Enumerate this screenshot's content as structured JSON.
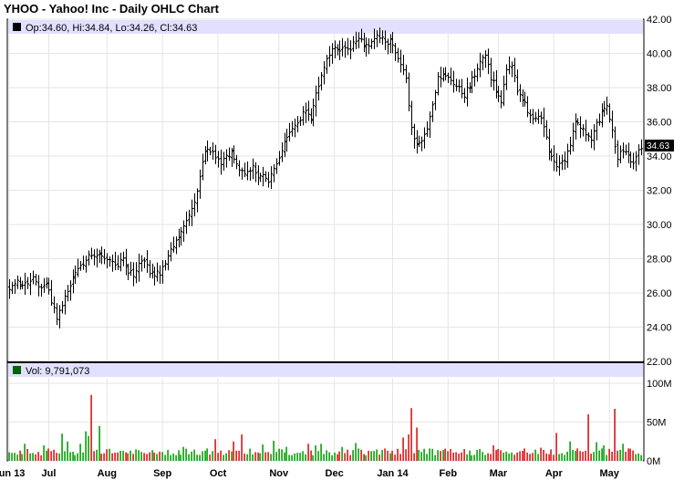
{
  "chart_data": [
    {
      "type": "ohlc",
      "title": "YHOO - Yahoo! Inc - Daily OHLC Chart",
      "info": "Op:34.60, Hi:34.84, Lo:34.26, Cl:34.63",
      "last_price_label": "34.63",
      "ylim": [
        22,
        42
      ],
      "y_ticks": [
        "22.00",
        "24.00",
        "26.00",
        "28.00",
        "30.00",
        "32.00",
        "34.00",
        "36.00",
        "38.00",
        "40.00",
        "42.00"
      ],
      "x_tick_labels": [
        "Jun 13",
        "Jul",
        "Aug",
        "Sep",
        "Oct",
        "Nov",
        "Dec",
        "Jan 14",
        "Feb",
        "Mar",
        "Apr",
        "May"
      ],
      "x_tick_days": [
        0,
        15,
        37,
        58,
        79,
        102,
        123,
        145,
        166,
        185,
        206,
        227
      ],
      "grid": true,
      "keyframes_close": [
        [
          0,
          26.2
        ],
        [
          3,
          26.6
        ],
        [
          7,
          26.5
        ],
        [
          9,
          26.8
        ],
        [
          11,
          26.3
        ],
        [
          14,
          26.6
        ],
        [
          16,
          25.5
        ],
        [
          18,
          24.6
        ],
        [
          20,
          25.3
        ],
        [
          23,
          26.3
        ],
        [
          25,
          27.1
        ],
        [
          27,
          27.6
        ],
        [
          29,
          28.0
        ],
        [
          31,
          28.3
        ],
        [
          34,
          28.2
        ],
        [
          37,
          28.0
        ],
        [
          39,
          27.9
        ],
        [
          41,
          27.6
        ],
        [
          43,
          28.2
        ],
        [
          45,
          27.3
        ],
        [
          47,
          27.0
        ],
        [
          49,
          27.8
        ],
        [
          51,
          28.0
        ],
        [
          53,
          27.2
        ],
        [
          55,
          27.0
        ],
        [
          57,
          27.2
        ],
        [
          59,
          27.8
        ],
        [
          61,
          28.5
        ],
        [
          64,
          29.4
        ],
        [
          66,
          29.9
        ],
        [
          68,
          30.4
        ],
        [
          70,
          31.3
        ],
        [
          72,
          32.8
        ],
        [
          74,
          34.2
        ],
        [
          76,
          34.4
        ],
        [
          78,
          33.9
        ],
        [
          80,
          33.5
        ],
        [
          82,
          33.9
        ],
        [
          84,
          34.3
        ],
        [
          86,
          33.4
        ],
        [
          88,
          33.0
        ],
        [
          90,
          33.0
        ],
        [
          92,
          33.5
        ],
        [
          94,
          32.7
        ],
        [
          96,
          32.8
        ],
        [
          98,
          32.4
        ],
        [
          100,
          33.3
        ],
        [
          102,
          33.9
        ],
        [
          104,
          34.7
        ],
        [
          106,
          35.4
        ],
        [
          108,
          35.9
        ],
        [
          110,
          36.2
        ],
        [
          112,
          36.7
        ],
        [
          114,
          36.2
        ],
        [
          116,
          37.6
        ],
        [
          118,
          38.7
        ],
        [
          120,
          39.6
        ],
        [
          122,
          40.2
        ],
        [
          125,
          40.3
        ],
        [
          128,
          40.1
        ],
        [
          130,
          40.5
        ],
        [
          132,
          40.8
        ],
        [
          134,
          40.6
        ],
        [
          136,
          40.3
        ],
        [
          138,
          40.9
        ],
        [
          140,
          41.0
        ],
        [
          142,
          40.6
        ],
        [
          144,
          40.8
        ],
        [
          146,
          40.0
        ],
        [
          148,
          39.5
        ],
        [
          150,
          38.4
        ],
        [
          152,
          35.5
        ],
        [
          154,
          34.5
        ],
        [
          156,
          34.9
        ],
        [
          158,
          35.5
        ],
        [
          160,
          37.0
        ],
        [
          162,
          38.5
        ],
        [
          164,
          38.8
        ],
        [
          166,
          38.6
        ],
        [
          168,
          38.3
        ],
        [
          170,
          37.9
        ],
        [
          172,
          37.6
        ],
        [
          174,
          38.2
        ],
        [
          176,
          38.7
        ],
        [
          178,
          39.5
        ],
        [
          180,
          39.8
        ],
        [
          182,
          38.6
        ],
        [
          184,
          37.9
        ],
        [
          186,
          37.1
        ],
        [
          188,
          39.0
        ],
        [
          190,
          39.3
        ],
        [
          192,
          37.9
        ],
        [
          194,
          37.3
        ],
        [
          196,
          36.7
        ],
        [
          198,
          36.3
        ],
        [
          200,
          36.4
        ],
        [
          202,
          35.8
        ],
        [
          204,
          34.2
        ],
        [
          206,
          33.6
        ],
        [
          208,
          33.4
        ],
        [
          210,
          33.8
        ],
        [
          212,
          34.6
        ],
        [
          214,
          36.1
        ],
        [
          216,
          35.7
        ],
        [
          218,
          35.4
        ],
        [
          220,
          34.8
        ],
        [
          222,
          35.8
        ],
        [
          224,
          36.5
        ],
        [
          226,
          36.9
        ],
        [
          228,
          35.4
        ],
        [
          230,
          33.9
        ],
        [
          232,
          34.4
        ],
        [
          234,
          34.1
        ],
        [
          236,
          33.5
        ],
        [
          238,
          34.4
        ]
      ],
      "volume": {
        "label": "Vol: 9,791,073",
        "ylim": [
          0,
          100
        ],
        "y_ticks": [
          "0M",
          "50M",
          "100M"
        ],
        "spikes": [
          [
            6,
            22
          ],
          [
            13,
            20
          ],
          [
            20,
            35
          ],
          [
            22,
            25
          ],
          [
            27,
            22
          ],
          [
            29,
            38
          ],
          [
            30,
            32
          ],
          [
            31,
            85
          ],
          [
            34,
            45
          ],
          [
            60,
            14
          ],
          [
            66,
            18
          ],
          [
            75,
            16
          ],
          [
            78,
            28
          ],
          [
            85,
            25
          ],
          [
            88,
            34
          ],
          [
            96,
            21
          ],
          [
            100,
            26
          ],
          [
            105,
            18
          ],
          [
            113,
            22
          ],
          [
            116,
            20
          ],
          [
            118,
            22
          ],
          [
            126,
            18
          ],
          [
            131,
            23
          ],
          [
            142,
            16
          ],
          [
            149,
            30
          ],
          [
            151,
            34
          ],
          [
            152,
            68
          ],
          [
            154,
            43
          ],
          [
            159,
            16
          ],
          [
            164,
            14
          ],
          [
            177,
            14
          ],
          [
            183,
            20
          ],
          [
            195,
            16
          ],
          [
            201,
            17
          ],
          [
            207,
            36
          ],
          [
            212,
            25
          ],
          [
            215,
            16
          ],
          [
            219,
            60
          ],
          [
            222,
            24
          ],
          [
            224,
            16
          ],
          [
            225,
            20
          ],
          [
            229,
            67
          ],
          [
            232,
            22
          ],
          [
            234,
            16
          ]
        ]
      }
    }
  ]
}
